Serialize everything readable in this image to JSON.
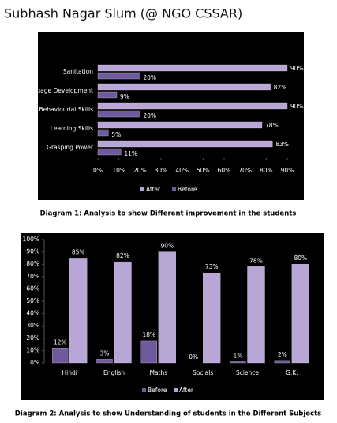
{
  "title": "Subhash Nagar Slum (@ NGO CSSAR)",
  "chart_data": [
    {
      "type": "bar",
      "horizontal": true,
      "caption": "Diagram 1: Analysis to show Different improvement in the students",
      "categories": [
        "Sanitation",
        "Language Development",
        "Behaviourial Skills",
        "Learning Skills",
        "Grasping Power"
      ],
      "series": [
        {
          "name": "After",
          "color": "#b8a6d6",
          "values": [
            90,
            82,
            90,
            78,
            83
          ],
          "value_labels": [
            "90%",
            "82%",
            "90%",
            "78%",
            "83%"
          ]
        },
        {
          "name": "Before",
          "color": "#6e5a9c",
          "values": [
            20,
            9,
            20,
            5,
            11
          ],
          "value_labels": [
            "20%",
            "9%",
            "20%",
            "5%",
            "11%"
          ]
        }
      ],
      "xlim": [
        0,
        90
      ],
      "xticks": [
        {
          "value": 0,
          "label": "0%"
        },
        {
          "value": 10,
          "label": "10%"
        },
        {
          "value": 20,
          "label": "20%"
        },
        {
          "value": 30,
          "label": "30%"
        },
        {
          "value": 40,
          "label": "40%"
        },
        {
          "value": 50,
          "label": "50%"
        },
        {
          "value": 60,
          "label": "60%"
        },
        {
          "value": 70,
          "label": "70%"
        },
        {
          "value": 80,
          "label": "80%"
        },
        {
          "value": 90,
          "label": "90%"
        }
      ],
      "legend": "bottom"
    },
    {
      "type": "bar",
      "horizontal": false,
      "caption": "Diagram 2: Analysis to show Understanding of students in the Different Subjects",
      "categories": [
        "Hindi",
        "English",
        "Maths",
        "Socials",
        "Science",
        "G.K."
      ],
      "series": [
        {
          "name": "Before",
          "color": "#6e5a9c",
          "values": [
            12,
            3,
            18,
            0,
            1,
            2
          ],
          "value_labels": [
            "12%",
            "3%",
            "18%",
            "0%",
            "1%",
            "2%"
          ]
        },
        {
          "name": "After",
          "color": "#b8a6d6",
          "values": [
            85,
            82,
            90,
            73,
            78,
            80
          ],
          "value_labels": [
            "85%",
            "82%",
            "90%",
            "73%",
            "78%",
            "80%"
          ]
        }
      ],
      "ylim": [
        0,
        100
      ],
      "yticks": [
        {
          "value": 0,
          "label": "0%"
        },
        {
          "value": 10,
          "label": "10%"
        },
        {
          "value": 20,
          "label": "20%"
        },
        {
          "value": 30,
          "label": "30%"
        },
        {
          "value": 40,
          "label": "40%"
        },
        {
          "value": 50,
          "label": "50%"
        },
        {
          "value": 60,
          "label": "60%"
        },
        {
          "value": 70,
          "label": "70%"
        },
        {
          "value": 80,
          "label": "80%"
        },
        {
          "value": 90,
          "label": "90%"
        },
        {
          "value": 100,
          "label": "100%"
        }
      ],
      "legend": "bottom"
    }
  ]
}
